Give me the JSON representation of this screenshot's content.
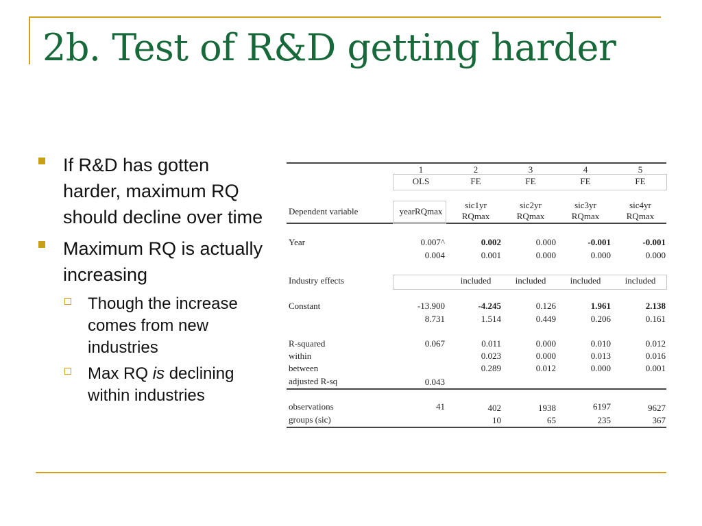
{
  "slide": {
    "title": "2b. Test of R&D getting harder",
    "bullets": [
      {
        "text": "If R&D has gotten harder, maximum RQ should decline over time",
        "sub": []
      },
      {
        "text": "Maximum RQ is actually increasing",
        "sub": [
          {
            "pre": "Though the increase comes from new industries",
            "em": "",
            "post": ""
          },
          {
            "pre": "Max RQ ",
            "em": "is",
            "post": " declining within industries"
          }
        ]
      }
    ]
  },
  "regression_table": {
    "column_numbers": [
      "1",
      "2",
      "3",
      "4",
      "5"
    ],
    "methods": [
      "OLS",
      "FE",
      "FE",
      "FE",
      "FE"
    ],
    "dependent_variable_label": "Dependent variable",
    "dependent_variables": [
      [
        "yearRQmax"
      ],
      [
        "sic1yr",
        "RQmax"
      ],
      [
        "sic2yr",
        "RQmax"
      ],
      [
        "sic3yr",
        "RQmax"
      ],
      [
        "sic4yr",
        "RQmax"
      ]
    ],
    "year": {
      "label": "Year",
      "coef": [
        "0.007^",
        "0.002",
        "0.000",
        "-0.001",
        "-0.001"
      ],
      "coef_bold": [
        false,
        true,
        false,
        true,
        true
      ],
      "se": [
        "0.004",
        "0.001",
        "0.000",
        "0.000",
        "0.000"
      ]
    },
    "industry_effects": {
      "label": "Industry effects",
      "values": [
        "",
        "included",
        "included",
        "included",
        "included"
      ]
    },
    "constant": {
      "label": "Constant",
      "coef": [
        "-13.900",
        "-4.245",
        "0.126",
        "1.961",
        "2.138"
      ],
      "coef_bold": [
        false,
        true,
        false,
        true,
        true
      ],
      "se": [
        "8.731",
        "1.514",
        "0.449",
        "0.206",
        "0.161"
      ]
    },
    "r_squared": {
      "labels": [
        "R-squared",
        "within",
        "between",
        "adjusted R-sq"
      ],
      "overall": [
        "0.067",
        "0.011",
        "0.000",
        "0.010",
        "0.012"
      ],
      "within": [
        "",
        "0.023",
        "0.000",
        "0.013",
        "0.016"
      ],
      "between": [
        "",
        "0.289",
        "0.012",
        "0.000",
        "0.001"
      ],
      "adjusted": [
        "0.043",
        "",
        "",
        "",
        ""
      ]
    },
    "observations": {
      "label": "observations",
      "values": [
        "41",
        "402",
        "1938",
        "6197",
        "9627"
      ]
    },
    "groups": {
      "label": "groups (sic)",
      "values": [
        "",
        "10",
        "65",
        "235",
        "367"
      ]
    }
  }
}
